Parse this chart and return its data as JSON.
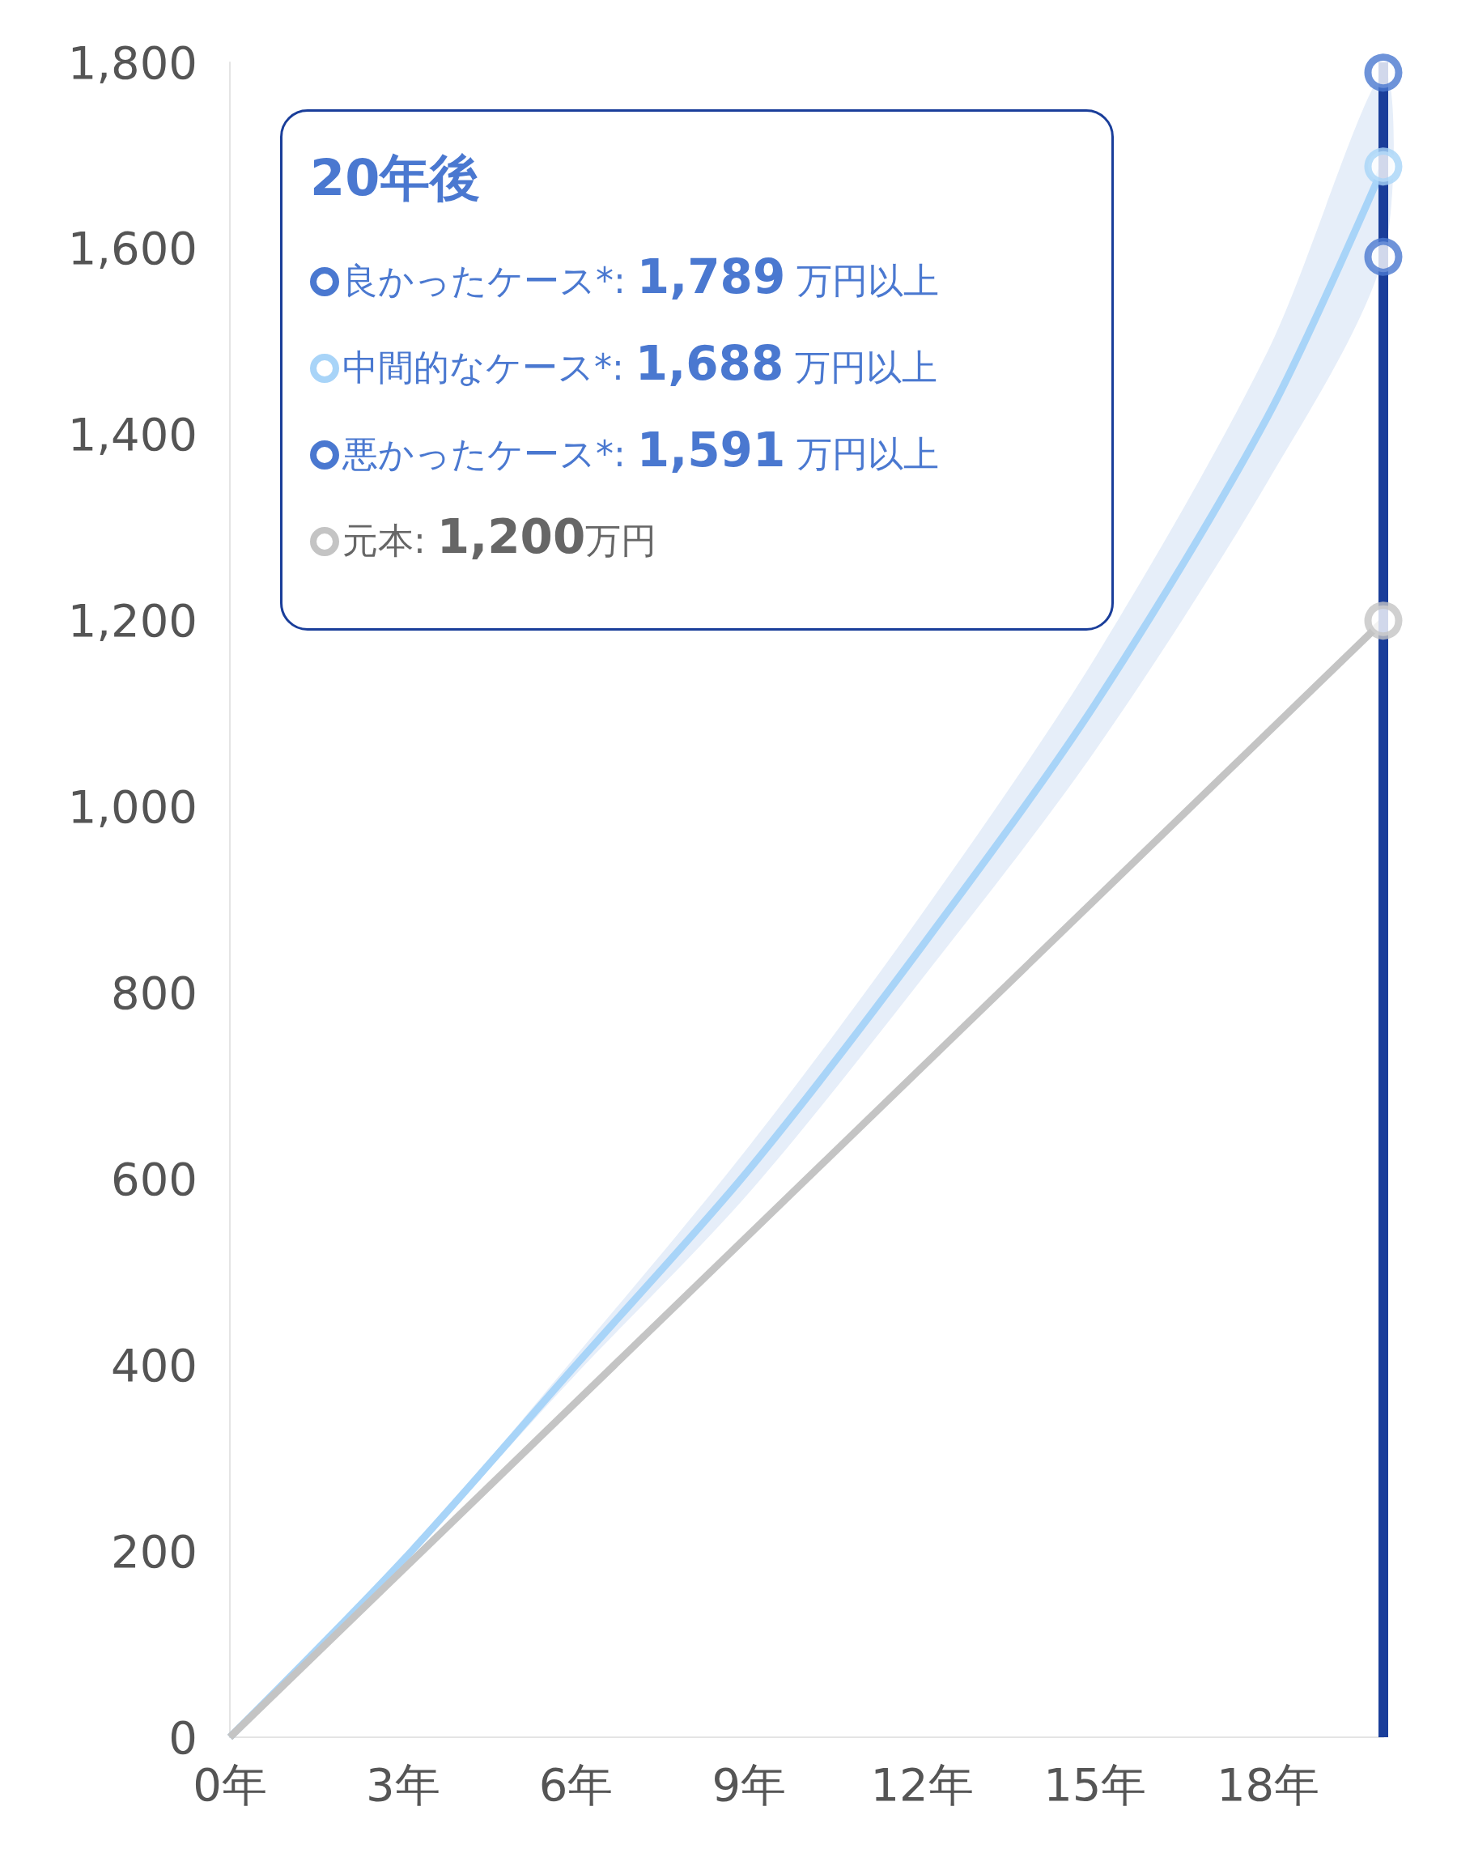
{
  "chart_data": {
    "type": "line",
    "grid": false,
    "annotations": [
      "20年後",
      "良かったケース*: 1,789 万円以上",
      "中間的なケース*: 1,688 万円以上",
      "悪かったケース*: 1,591 万円以上",
      "元本: 1,200万円"
    ],
    "xlim": [
      0,
      20
    ],
    "ylim": [
      0,
      1800
    ],
    "xticks": [
      {
        "value": 0,
        "label": "0年"
      },
      {
        "value": 3,
        "label": "3年"
      },
      {
        "value": 6,
        "label": "6年"
      },
      {
        "value": 9,
        "label": "9年"
      },
      {
        "value": 12,
        "label": "12年"
      },
      {
        "value": 15,
        "label": "15年"
      },
      {
        "value": 18,
        "label": "18年"
      }
    ],
    "yticks": [
      0,
      200,
      400,
      600,
      800,
      {
        "value": 1000,
        "label": "1,000"
      },
      {
        "value": 1200,
        "label": "1,200"
      },
      {
        "value": 1400,
        "label": "1,400"
      },
      {
        "value": 1600,
        "label": "1,600"
      },
      {
        "value": 1800,
        "label": "1,800"
      }
    ],
    "series": [
      {
        "color": "#a8d4f8",
        "marker": "none",
        "x": [
          0,
          3,
          6,
          9,
          12,
          15,
          18,
          20
        ],
        "values": [
          0,
          190,
          400,
          610,
          850,
          1110,
          1420,
          1688
        ],
        "lower": [
          0,
          188,
          390,
          585,
          815,
          1060,
          1350,
          1591
        ],
        "upper": [
          0,
          192,
          410,
          635,
          885,
          1160,
          1490,
          1789
        ]
      },
      {
        "color": "#c4c4c4",
        "marker": "none",
        "x": [
          0,
          20
        ],
        "values": [
          0,
          1200
        ]
      },
      {
        "type": "scatter",
        "marker": "circle",
        "x": [
          20,
          20,
          20,
          20
        ],
        "values": [
          1789,
          1688,
          1591,
          1200
        ],
        "colors": [
          "#4a78d0",
          "#a8d4f8",
          "#4a78d0",
          "#c4c4c4"
        ]
      }
    ],
    "ref_lines": [
      {
        "axis": "x",
        "value": 20,
        "color": "#1a3e9a"
      }
    ]
  }
}
